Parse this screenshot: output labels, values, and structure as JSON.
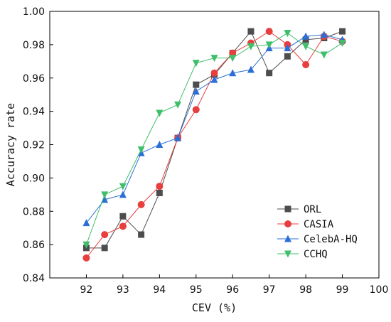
{
  "chart_data": {
    "type": "line",
    "xlabel": "CEV (%)",
    "ylabel": "Accuracy rate",
    "xlim": [
      91,
      100
    ],
    "ylim": [
      0.84,
      1.0
    ],
    "xticks": [
      92,
      93,
      94,
      95,
      96,
      97,
      98,
      99,
      100
    ],
    "yticks": [
      0.84,
      0.86,
      0.88,
      0.9,
      0.92,
      0.94,
      0.96,
      0.98,
      1.0
    ],
    "xtick_labels": [
      "92",
      "93",
      "94",
      "95",
      "96",
      "97",
      "98",
      "99",
      "100"
    ],
    "ytick_labels": [
      "0.84",
      "0.86",
      "0.88",
      "0.90",
      "0.92",
      "0.94",
      "0.96",
      "0.98",
      "1.00"
    ],
    "grid": false,
    "legend_position": "bottom-right",
    "x": [
      92,
      92.5,
      93,
      93.5,
      94,
      94.5,
      95,
      95.5,
      96,
      96.5,
      97,
      97.5,
      98,
      98.5,
      99
    ],
    "series": [
      {
        "name": "ORL",
        "color": "#4d4d4d",
        "marker": "square",
        "values": [
          0.858,
          0.858,
          0.877,
          0.866,
          0.891,
          0.924,
          0.956,
          0.962,
          0.975,
          0.988,
          0.963,
          0.973,
          0.983,
          0.984,
          0.988
        ]
      },
      {
        "name": "CASIA",
        "color": "#e83e3e",
        "marker": "circle",
        "values": [
          0.852,
          0.866,
          0.871,
          0.884,
          0.895,
          0.924,
          0.941,
          0.963,
          0.975,
          0.981,
          0.988,
          0.98,
          0.968,
          0.985,
          0.982
        ]
      },
      {
        "name": "CelebA-HQ",
        "color": "#2b6fd6",
        "marker": "triangle-up",
        "values": [
          0.873,
          0.887,
          0.89,
          0.915,
          0.92,
          0.924,
          0.952,
          0.959,
          0.963,
          0.965,
          0.978,
          0.978,
          0.985,
          0.986,
          0.983
        ]
      },
      {
        "name": "CCHQ",
        "color": "#3fbf6a",
        "marker": "triangle-down",
        "values": [
          0.86,
          0.89,
          0.895,
          0.917,
          0.939,
          0.944,
          0.969,
          0.972,
          0.972,
          0.979,
          0.98,
          0.987,
          0.979,
          0.974,
          0.981
        ]
      }
    ]
  }
}
